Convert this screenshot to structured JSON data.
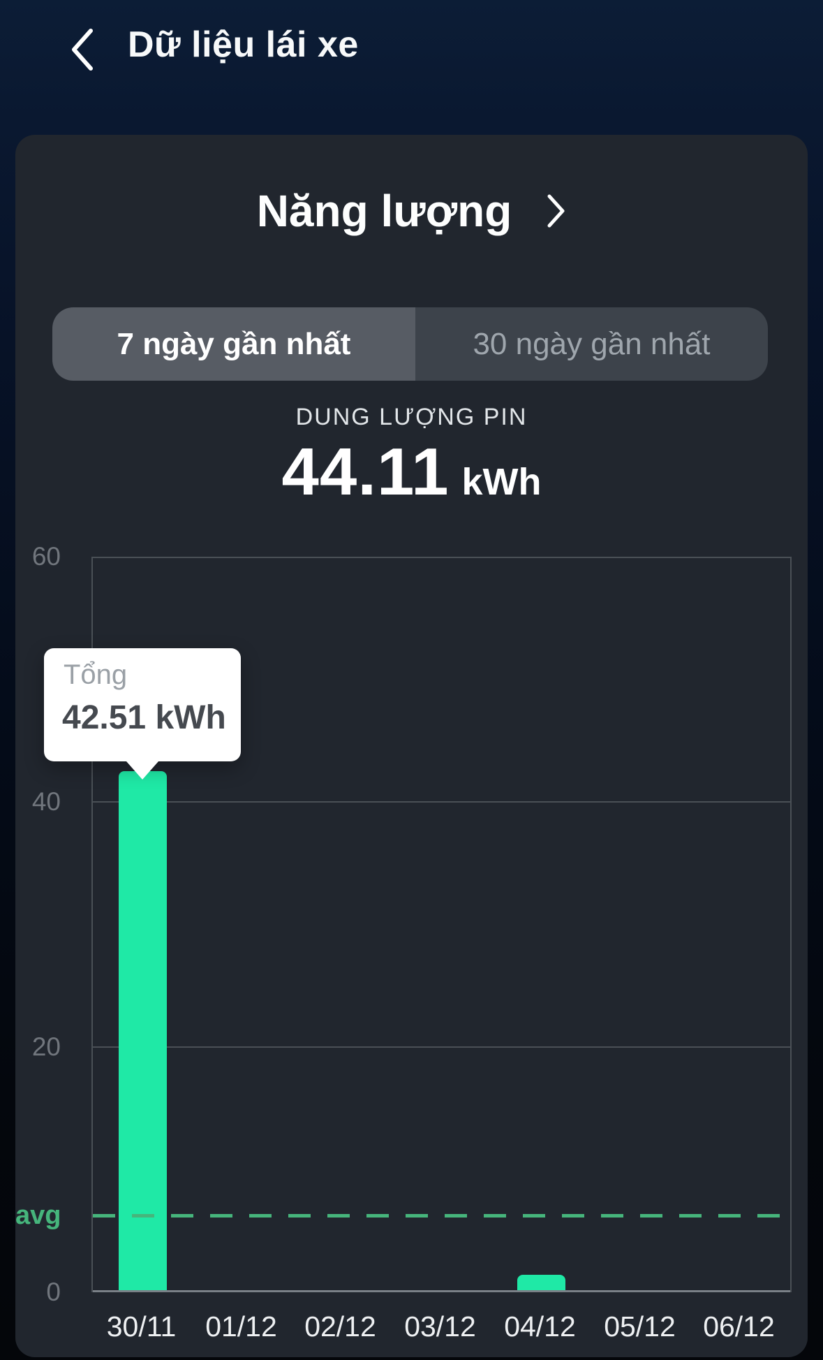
{
  "header": {
    "title": "Dữ liệu lái xe"
  },
  "energy": {
    "title": "Năng lượng"
  },
  "tabs": {
    "left": "7 ngày gần nhất",
    "right": "30 ngày gần nhất",
    "selected": "7 ngày gần nhất"
  },
  "metric": {
    "label": "DUNG LƯỢNG PIN",
    "value": "44.11",
    "unit": "kWh"
  },
  "tooltip": {
    "label": "Tổng",
    "value": "42.51 kWh",
    "target_category": "30/11"
  },
  "chart_data": {
    "type": "bar",
    "title": "",
    "xlabel": "",
    "ylabel": "",
    "categories": [
      "30/11",
      "01/12",
      "02/12",
      "03/12",
      "04/12",
      "05/12",
      "06/12"
    ],
    "values": [
      42.51,
      0,
      0,
      0,
      1.4,
      0,
      0
    ],
    "ylim": [
      0,
      60
    ],
    "yticks": [
      0,
      20,
      40,
      60
    ],
    "grid": true,
    "legend_position": "none",
    "avg_line": {
      "label": "avg",
      "value": 6.27,
      "style": "dashed"
    },
    "bar_color": "#1fe9a6",
    "avg_color": "#46b57c"
  },
  "colors": {
    "background_top": "#0b1c36",
    "background_bottom": "#04060a",
    "card": "#21262e",
    "grid": "#4a5056",
    "axis": "#7a8087",
    "tab_selected_bg": "#575c64",
    "tab_unselected_bg": "#3d434b",
    "bar": "#1fe9a6",
    "avg": "#46b57c"
  }
}
